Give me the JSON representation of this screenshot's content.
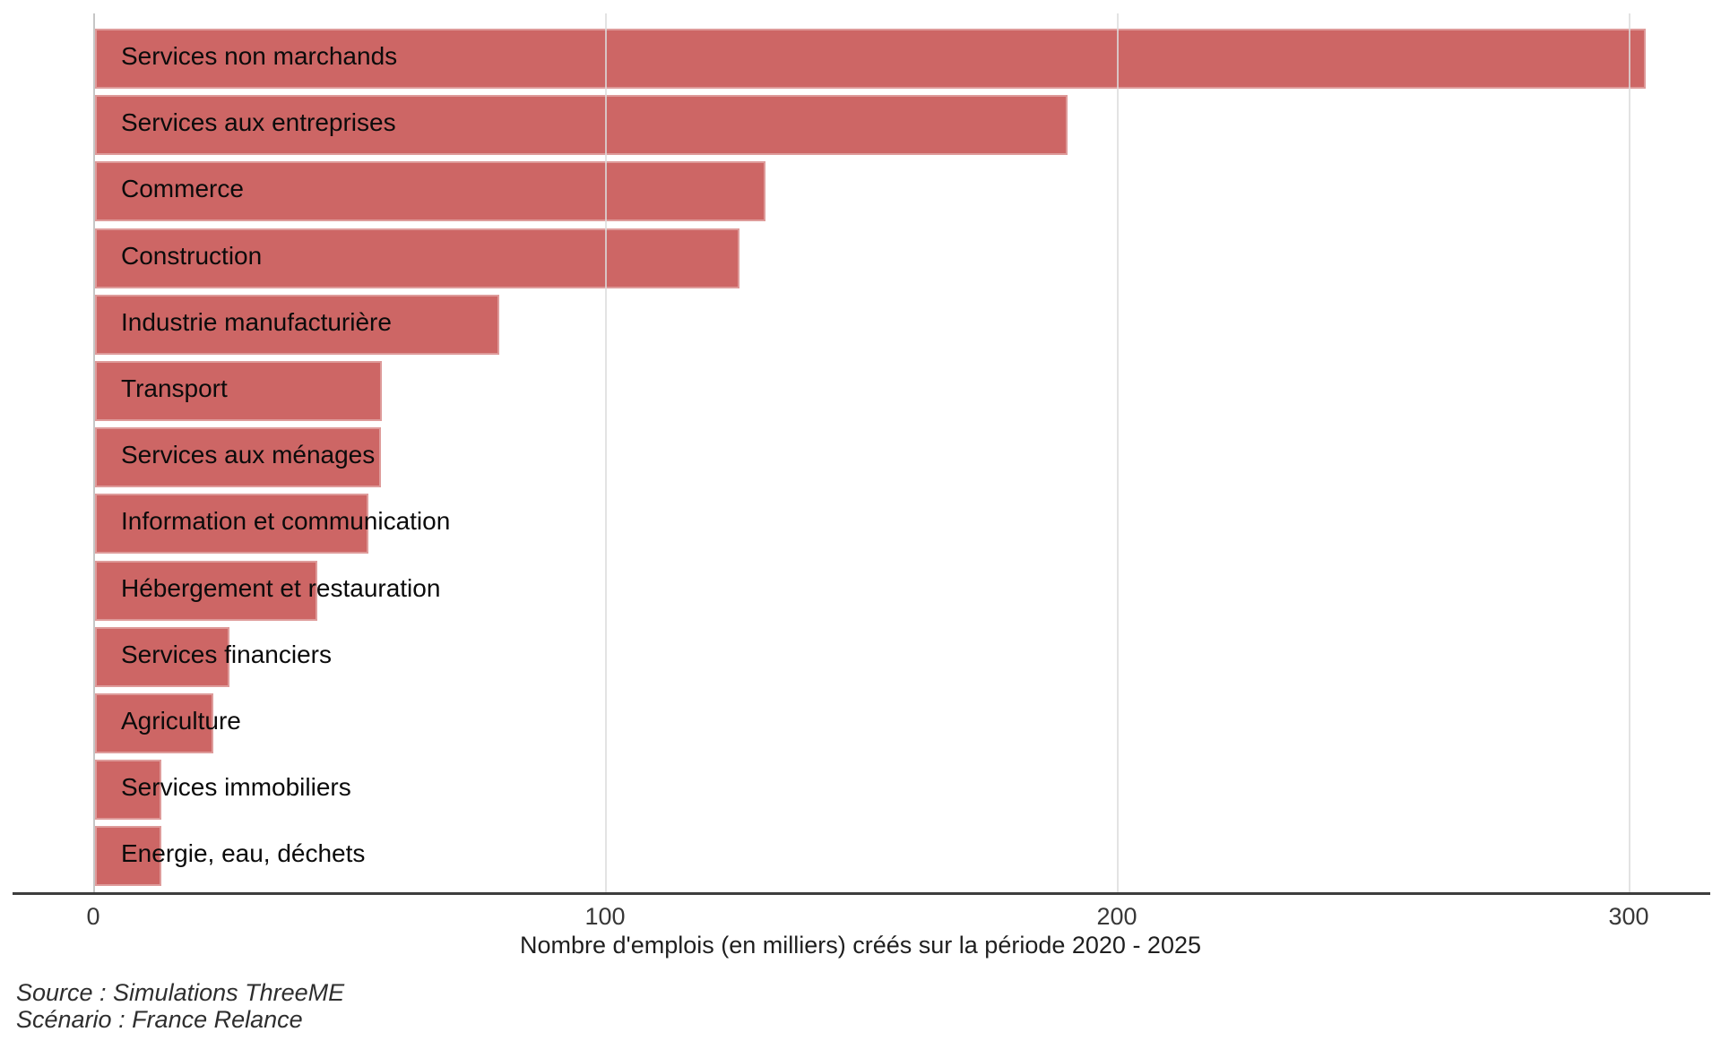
{
  "chart_data": {
    "type": "bar",
    "orientation": "horizontal",
    "categories": [
      "Services non marchands",
      "Services aux entreprises",
      "Commerce",
      "Construction",
      "Industrie manufacturière",
      "Transport",
      "Services aux ménages",
      "Information et communication",
      "Hébergement et restauration",
      "Services financiers",
      "Agriculture",
      "Services immobiliers",
      "Energie, eau, déchets"
    ],
    "values": [
      303,
      190,
      131,
      126,
      79,
      56,
      55.8,
      53.4,
      43.4,
      26.2,
      23.1,
      13,
      12.9
    ],
    "x_ticks": [
      "0",
      "100",
      "200",
      "300"
    ],
    "x_tick_values": [
      0,
      100,
      200,
      300
    ],
    "xlim": [
      0,
      315
    ],
    "xlabel": "Nombre d'emplois (en milliers) créés sur la période 2020 - 2025",
    "bar_color": "#cd6665",
    "grid": true,
    "legend": "none",
    "value_labels": "category names inside bars, left aligned"
  },
  "caption": {
    "source": "Source : Simulations ThreeME",
    "scenario": "Scénario : France Relance"
  }
}
